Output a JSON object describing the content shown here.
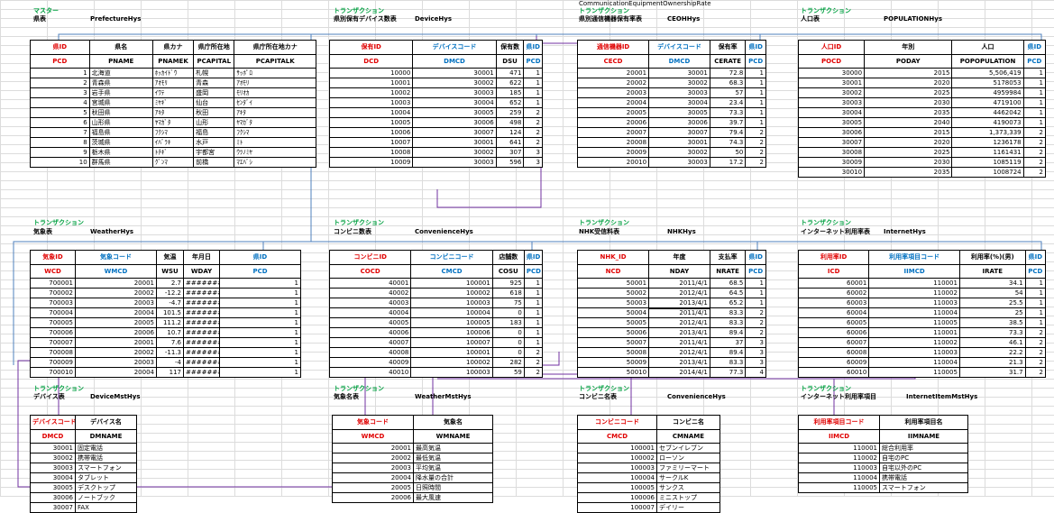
{
  "top_label": "CommunicationEquipmentOwnershipRate",
  "sections": {
    "pref": {
      "cat": "マスター",
      "name": "県表",
      "tbl": "PrefectureHys"
    },
    "dev": {
      "cat": "トランザクション",
      "name": "県別保有デバイス数表",
      "tbl": "DeviceHys"
    },
    "ce": {
      "cat": "トランザクション",
      "name": "県別通信機器保有率表",
      "tbl": "CEOHHys"
    },
    "pop": {
      "cat": "トランザクション",
      "name": "人口表",
      "tbl": "POPULATIONHys"
    },
    "wea": {
      "cat": "トランザクション",
      "name": "気象表",
      "tbl": "WeatherHys"
    },
    "conv": {
      "cat": "トランザクション",
      "name": "コンビニ数表",
      "tbl": "ConvenienceHys"
    },
    "nhk": {
      "cat": "トランザクション",
      "name": "NHK受信料表",
      "tbl": "NHKHys"
    },
    "inet": {
      "cat": "トランザクション",
      "name": "インターネット利用率表",
      "tbl": "InternetHys"
    },
    "devm": {
      "cat": "トランザクション",
      "name": "デバイス表",
      "tbl": "DeviceMstHys"
    },
    "weam": {
      "cat": "トランザクション",
      "name": "気象名表",
      "tbl": "WeatherMstHys"
    },
    "convm": {
      "cat": "トランザクション",
      "name": "コンビニ名表",
      "tbl": "ConvenienceHys"
    },
    "inetm": {
      "cat": "トランザクション",
      "name": "インターネット利用率項目",
      "tbl": "InternetItemMstHys"
    }
  },
  "tables": {
    "pref": {
      "h1": [
        "県ID",
        "県名",
        "県カナ",
        "県庁所在地",
        "県庁所在地カナ"
      ],
      "h2": [
        "PCD",
        "PNAME",
        "PNAMEK",
        "PCAPITAL",
        "PCAPITALK"
      ],
      "rows": [
        [
          "1",
          "北海道",
          "ﾎｯｶｲﾄﾞｳ",
          "札幌",
          "ｻｯﾎﾟﾛ"
        ],
        [
          "2",
          "青森県",
          "ｱｵﾓﾘ",
          "青森",
          "ｱｵﾓﾘ"
        ],
        [
          "3",
          "岩手県",
          "ｲﾜﾃ",
          "盛岡",
          "ﾓﾘｵｶ"
        ],
        [
          "4",
          "宮城県",
          "ﾐﾔｷﾞ",
          "仙台",
          "ｾﾝﾀﾞｲ"
        ],
        [
          "5",
          "秋田県",
          "ｱｷﾀ",
          "秋田",
          "ｱｷﾀ"
        ],
        [
          "6",
          "山形県",
          "ﾔﾏｶﾞﾀ",
          "山形",
          "ﾔﾏｶﾞﾀ"
        ],
        [
          "7",
          "福島県",
          "ﾌｸｼﾏ",
          "福島",
          "ﾌｸｼﾏ"
        ],
        [
          "8",
          "茨城県",
          "ｲﾊﾞﾗｷ",
          "水戸",
          "ﾐﾄ"
        ],
        [
          "9",
          "栃木県",
          "ﾄﾁｷﾞ",
          "宇都宮",
          "ｳﾂﾉﾐﾔ"
        ],
        [
          "10",
          "群馬県",
          "ｸﾞﾝﾏ",
          "前橋",
          "ﾏｴﾊﾞｼ"
        ]
      ]
    },
    "dev": {
      "h1": [
        "保有ID",
        "デバイスコード",
        "保有数",
        "県ID"
      ],
      "h2": [
        "DCD",
        "DMCD",
        "DSU",
        "PCD"
      ],
      "rows": [
        [
          "10000",
          "30001",
          "471",
          "1"
        ],
        [
          "10001",
          "30002",
          "622",
          "1"
        ],
        [
          "10002",
          "30003",
          "185",
          "1"
        ],
        [
          "10003",
          "30004",
          "652",
          "1"
        ],
        [
          "10004",
          "30005",
          "259",
          "2"
        ],
        [
          "10005",
          "30006",
          "498",
          "2"
        ],
        [
          "10006",
          "30007",
          "124",
          "2"
        ],
        [
          "10007",
          "30001",
          "641",
          "2"
        ],
        [
          "10008",
          "30002",
          "307",
          "3"
        ],
        [
          "10009",
          "30003",
          "596",
          "3"
        ]
      ]
    },
    "ce": {
      "h1": [
        "通信機器ID",
        "デバイスコード",
        "保有率",
        "県ID"
      ],
      "h2": [
        "CECD",
        "DMCD",
        "CERATE",
        "PCD"
      ],
      "rows": [
        [
          "20001",
          "30001",
          "72.8",
          "1"
        ],
        [
          "20002",
          "30002",
          "68.3",
          "1"
        ],
        [
          "20003",
          "30003",
          "57",
          "1"
        ],
        [
          "20004",
          "30004",
          "23.4",
          "1"
        ],
        [
          "20005",
          "30005",
          "73.3",
          "1"
        ],
        [
          "20006",
          "30006",
          "39.7",
          "1"
        ],
        [
          "20007",
          "30007",
          "79.4",
          "2"
        ],
        [
          "20008",
          "30001",
          "74.3",
          "2"
        ],
        [
          "20009",
          "30002",
          "50",
          "2"
        ],
        [
          "20010",
          "30003",
          "17.2",
          "2"
        ]
      ]
    },
    "pop": {
      "h1": [
        "人口ID",
        "年別",
        "人口",
        "県ID"
      ],
      "h2": [
        "POCD",
        "PODAY",
        "POPOPULATION",
        "PCD"
      ],
      "rows": [
        [
          "30000",
          "2015",
          "5,506,419",
          "1"
        ],
        [
          "30001",
          "2020",
          "5178053",
          "1"
        ],
        [
          "30002",
          "2025",
          "4959984",
          "1"
        ],
        [
          "30003",
          "2030",
          "4719100",
          "1"
        ],
        [
          "30004",
          "2035",
          "4462042",
          "1"
        ],
        [
          "30005",
          "2040",
          "4190073",
          "1"
        ],
        [
          "30006",
          "2015",
          "1,373,339",
          "2"
        ],
        [
          "30007",
          "2020",
          "1236178",
          "2"
        ],
        [
          "30008",
          "2025",
          "1161431",
          "2"
        ],
        [
          "30009",
          "2030",
          "1085119",
          "2"
        ],
        [
          "30010",
          "2035",
          "1008724",
          "2"
        ]
      ]
    },
    "wea": {
      "h1": [
        "気象ID",
        "気象コード",
        "気温",
        "年月日",
        "県ID"
      ],
      "h2": [
        "WCD",
        "WMCD",
        "WSU",
        "WDAY",
        "PCD"
      ],
      "rows": [
        [
          "700001",
          "20001",
          "2.7",
          "########",
          "1"
        ],
        [
          "700002",
          "20002",
          "-12.2",
          "########",
          "1"
        ],
        [
          "700003",
          "20003",
          "-4.7",
          "########",
          "1"
        ],
        [
          "700004",
          "20004",
          "101.5",
          "########",
          "1"
        ],
        [
          "700005",
          "20005",
          "111.2",
          "########",
          "1"
        ],
        [
          "700006",
          "20006",
          "10.7",
          "########",
          "1"
        ],
        [
          "700007",
          "20001",
          "7.6",
          "########",
          "1"
        ],
        [
          "700008",
          "20002",
          "-11.3",
          "########",
          "1"
        ],
        [
          "700009",
          "20003",
          "-4",
          "########",
          "1"
        ],
        [
          "700010",
          "20004",
          "117",
          "########",
          "1"
        ]
      ]
    },
    "conv": {
      "h1": [
        "コンビニID",
        "コンビニコード",
        "店舗数",
        "県ID"
      ],
      "h2": [
        "COCD",
        "CMCD",
        "COSU",
        "PCD"
      ],
      "rows": [
        [
          "40001",
          "100001",
          "925",
          "1"
        ],
        [
          "40002",
          "100002",
          "618",
          "1"
        ],
        [
          "40003",
          "100003",
          "75",
          "1"
        ],
        [
          "40004",
          "100004",
          "0",
          "1"
        ],
        [
          "40005",
          "100005",
          "183",
          "1"
        ],
        [
          "40006",
          "100006",
          "0",
          "1"
        ],
        [
          "40007",
          "100007",
          "0",
          "1"
        ],
        [
          "40008",
          "100001",
          "0",
          "2"
        ],
        [
          "40009",
          "100002",
          "282",
          "2"
        ],
        [
          "40010",
          "100003",
          "59",
          "2"
        ]
      ]
    },
    "nhk": {
      "h1": [
        "NHK_ID",
        "年度",
        "支払率",
        "県ID"
      ],
      "h2": [
        "NCD",
        "NDAY",
        "NRATE",
        "PCD"
      ],
      "rows": [
        [
          "50001",
          "2011/4/1",
          "68.5",
          "1"
        ],
        [
          "50002",
          "2012/4/1",
          "64.5",
          "1"
        ],
        [
          "50003",
          "2013/4/1",
          "65.2",
          "1"
        ],
        [
          "50004",
          "2011/4/1",
          "83.3",
          "2"
        ],
        [
          "50005",
          "2012/4/1",
          "83.3",
          "2"
        ],
        [
          "50006",
          "2013/4/1",
          "89.4",
          "2"
        ],
        [
          "50007",
          "2011/4/1",
          "37",
          "3"
        ],
        [
          "50008",
          "2012/4/1",
          "89.4",
          "3"
        ],
        [
          "50009",
          "2013/4/1",
          "83.3",
          "3"
        ],
        [
          "50010",
          "2014/4/1",
          "77.3",
          "4"
        ]
      ]
    },
    "inet": {
      "h1": [
        "利用率ID",
        "利用率項目コード",
        "利用率(%)(男)",
        "県ID"
      ],
      "h2": [
        "ICD",
        "IIMCD",
        "IRATE",
        "PCD"
      ],
      "rows": [
        [
          "60001",
          "110001",
          "34.1",
          "1"
        ],
        [
          "60002",
          "110002",
          "54",
          "1"
        ],
        [
          "60003",
          "110003",
          "25.5",
          "1"
        ],
        [
          "60004",
          "110004",
          "25",
          "1"
        ],
        [
          "60005",
          "110005",
          "38.5",
          "1"
        ],
        [
          "60006",
          "110001",
          "73.3",
          "2"
        ],
        [
          "60007",
          "110002",
          "46.1",
          "2"
        ],
        [
          "60008",
          "110003",
          "22.2",
          "2"
        ],
        [
          "60009",
          "110004",
          "21.3",
          "2"
        ],
        [
          "60010",
          "110005",
          "31.7",
          "2"
        ]
      ]
    },
    "devm": {
      "h1": [
        "デバイスコード",
        "デバイス名"
      ],
      "h2": [
        "DMCD",
        "DMNAME"
      ],
      "rows": [
        [
          "30001",
          "固定電話"
        ],
        [
          "30002",
          "携帯電話"
        ],
        [
          "30003",
          "スマートフォン"
        ],
        [
          "30004",
          "タブレット"
        ],
        [
          "30005",
          "デスクトップ"
        ],
        [
          "30006",
          "ノートブック"
        ],
        [
          "30007",
          "FAX"
        ]
      ]
    },
    "weam": {
      "h1": [
        "気象コード",
        "気象名"
      ],
      "h2": [
        "WMCD",
        "WMNAME"
      ],
      "rows": [
        [
          "20001",
          "最高気温"
        ],
        [
          "20002",
          "最低気温"
        ],
        [
          "20003",
          "平均気温"
        ],
        [
          "20004",
          "降水量の合計"
        ],
        [
          "20005",
          "日照時間"
        ],
        [
          "20006",
          "最大風速"
        ]
      ]
    },
    "convm": {
      "h1": [
        "コンビニコード",
        "コンビニ名"
      ],
      "h2": [
        "CMCD",
        "CMNAME"
      ],
      "rows": [
        [
          "100001",
          "セブンイレブン"
        ],
        [
          "100002",
          "ローソン"
        ],
        [
          "100003",
          "ファミリーマート"
        ],
        [
          "100004",
          "サークルK"
        ],
        [
          "100005",
          "サンクス"
        ],
        [
          "100006",
          "ミニストップ"
        ],
        [
          "100007",
          "デイリー"
        ]
      ]
    },
    "inetm": {
      "h1": [
        "利用率項目コード",
        "利用率項目名"
      ],
      "h2": [
        "IIMCD",
        "IIMNAME"
      ],
      "rows": [
        [
          "110001",
          "総合利用率"
        ],
        [
          "110002",
          "自宅のPC"
        ],
        [
          "110003",
          "自宅以外のPC"
        ],
        [
          "110004",
          "携帯電話"
        ],
        [
          "110005",
          "スマートフォン"
        ]
      ]
    }
  },
  "colors": {
    "red": "#e00000",
    "blue": "#0070c0",
    "green": "#00a040",
    "line_blue": "#4f81bd",
    "line_purple": "#7030a0"
  }
}
